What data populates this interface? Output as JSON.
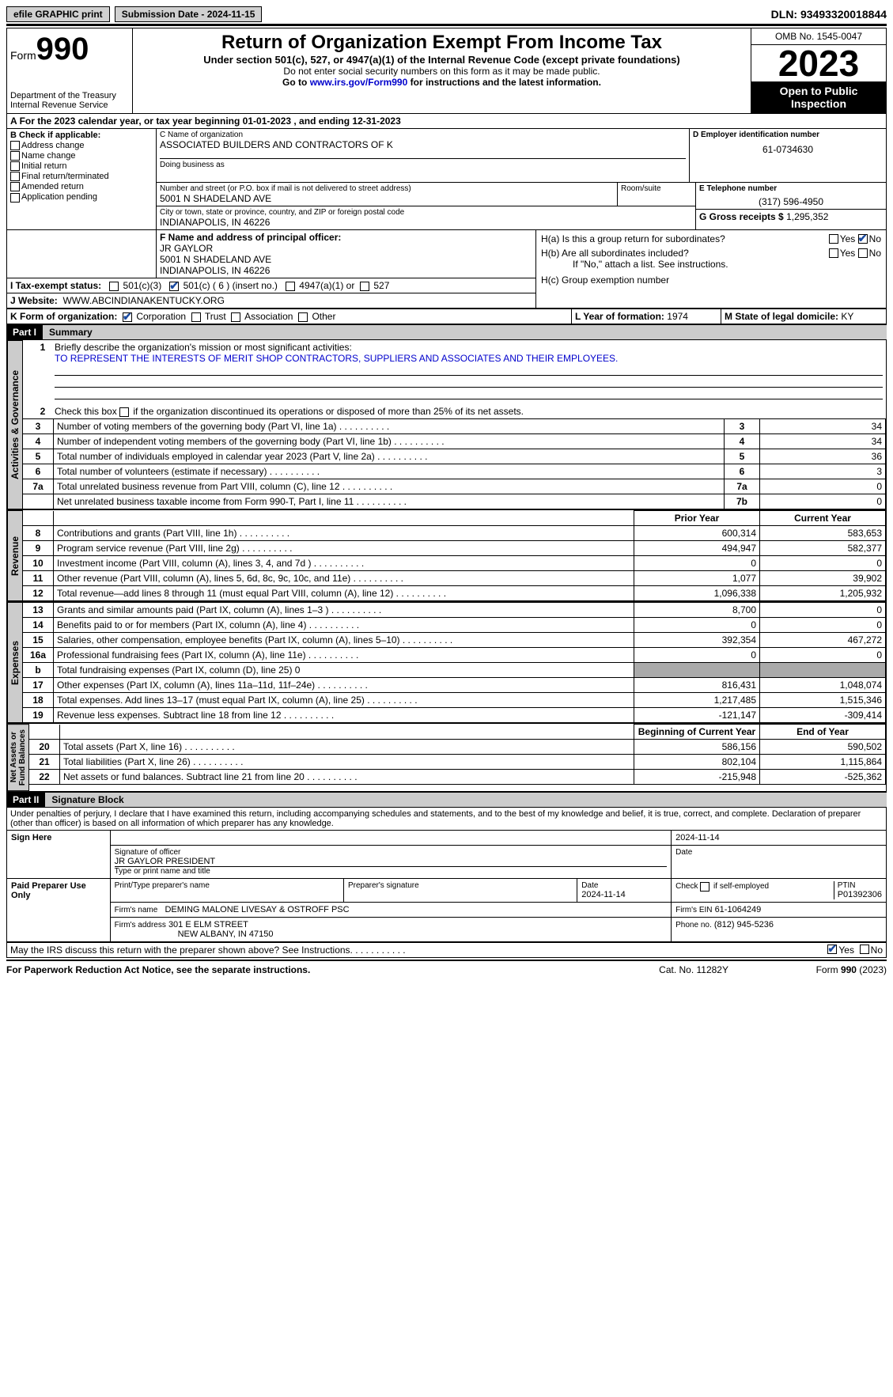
{
  "topbar": {
    "efile": "efile GRAPHIC print",
    "submission_label": "Submission Date - 2024-11-15",
    "dln_label": "DLN:",
    "dln": "93493320018844"
  },
  "header": {
    "form_prefix": "Form",
    "form_num": "990",
    "dept": "Department of the Treasury",
    "irs": "Internal Revenue Service",
    "title": "Return of Organization Exempt From Income Tax",
    "subtitle": "Under section 501(c), 527, or 4947(a)(1) of the Internal Revenue Code (except private foundations)",
    "note1": "Do not enter social security numbers on this form as it may be made public.",
    "note2_pre": "Go to ",
    "note2_link": "www.irs.gov/Form990",
    "note2_post": " for instructions and the latest information.",
    "omb": "OMB No. 1545-0047",
    "year": "2023",
    "open": "Open to Public Inspection"
  },
  "line_a": "For the 2023 calendar year, or tax year beginning 01-01-2023   , and ending 12-31-2023",
  "section_b": {
    "header": "B Check if applicable:",
    "items": [
      "Address change",
      "Name change",
      "Initial return",
      "Final return/terminated",
      "Amended return",
      "Application pending"
    ]
  },
  "section_c": {
    "label": "C Name of organization",
    "name": "ASSOCIATED BUILDERS AND CONTRACTORS OF K",
    "dba_label": "Doing business as",
    "addr_label": "Number and street (or P.O. box if mail is not delivered to street address)",
    "room_label": "Room/suite",
    "addr": "5001 N SHADELAND AVE",
    "city_label": "City or town, state or province, country, and ZIP or foreign postal code",
    "city": "INDIANAPOLIS, IN  46226"
  },
  "section_d": {
    "label": "D Employer identification number",
    "value": "61-0734630"
  },
  "section_e": {
    "label": "E Telephone number",
    "value": "(317) 596-4950"
  },
  "section_g": {
    "label": "G Gross receipts $",
    "value": "1,295,352"
  },
  "section_f": {
    "label": "F  Name and address of principal officer:",
    "name": "JR GAYLOR",
    "addr1": "5001 N SHADELAND AVE",
    "addr2": "INDIANAPOLIS, IN  46226"
  },
  "section_h": {
    "ha": "H(a)  Is this a group return for subordinates?",
    "hb": "H(b)  Are all subordinates included?",
    "hb_note": "If \"No,\" attach a list. See instructions.",
    "hc": "H(c)  Group exemption number",
    "yes": "Yes",
    "no": "No"
  },
  "tax_status": {
    "label": "I   Tax-exempt status:",
    "o1": "501(c)(3)",
    "o2": "501(c) ( 6 ) (insert no.)",
    "o3": "4947(a)(1) or",
    "o4": "527"
  },
  "website": {
    "label": "J   Website:",
    "value": "WWW.ABCINDIANAKENTUCKY.ORG"
  },
  "section_k": {
    "label": "K Form of organization:",
    "o1": "Corporation",
    "o2": "Trust",
    "o3": "Association",
    "o4": "Other"
  },
  "section_l": {
    "label": "L Year of formation:",
    "value": "1974"
  },
  "section_m": {
    "label": "M State of legal domicile:",
    "value": "KY"
  },
  "part1": {
    "num": "Part I",
    "title": "Summary"
  },
  "mission": {
    "label": "Briefly describe the organization's mission or most significant activities:",
    "text": "TO REPRESENT THE INTERESTS OF MERIT SHOP CONTRACTORS, SUPPLIERS AND ASSOCIATES AND THEIR EMPLOYEES."
  },
  "line2": "Check this box        if the organization discontinued its operations or disposed of more than 25% of its net assets.",
  "gov_rows": [
    {
      "n": "3",
      "t": "Number of voting members of the governing body (Part VI, line 1a)",
      "box": "3",
      "v": "34"
    },
    {
      "n": "4",
      "t": "Number of independent voting members of the governing body (Part VI, line 1b)",
      "box": "4",
      "v": "34"
    },
    {
      "n": "5",
      "t": "Total number of individuals employed in calendar year 2023 (Part V, line 2a)",
      "box": "5",
      "v": "36"
    },
    {
      "n": "6",
      "t": "Total number of volunteers (estimate if necessary)",
      "box": "6",
      "v": "3"
    },
    {
      "n": "7a",
      "t": "Total unrelated business revenue from Part VIII, column (C), line 12",
      "box": "7a",
      "v": "0"
    },
    {
      "n": "",
      "t": "Net unrelated business taxable income from Form 990-T, Part I, line 11",
      "box": "7b",
      "v": "0"
    }
  ],
  "rev_hdr": {
    "prior": "Prior Year",
    "current": "Current Year"
  },
  "rev_rows": [
    {
      "n": "8",
      "t": "Contributions and grants (Part VIII, line 1h)",
      "p": "600,314",
      "c": "583,653"
    },
    {
      "n": "9",
      "t": "Program service revenue (Part VIII, line 2g)",
      "p": "494,947",
      "c": "582,377"
    },
    {
      "n": "10",
      "t": "Investment income (Part VIII, column (A), lines 3, 4, and 7d )",
      "p": "0",
      "c": "0"
    },
    {
      "n": "11",
      "t": "Other revenue (Part VIII, column (A), lines 5, 6d, 8c, 9c, 10c, and 11e)",
      "p": "1,077",
      "c": "39,902"
    },
    {
      "n": "12",
      "t": "Total revenue—add lines 8 through 11 (must equal Part VIII, column (A), line 12)",
      "p": "1,096,338",
      "c": "1,205,932"
    }
  ],
  "exp_rows": [
    {
      "n": "13",
      "t": "Grants and similar amounts paid (Part IX, column (A), lines 1–3 )",
      "p": "8,700",
      "c": "0"
    },
    {
      "n": "14",
      "t": "Benefits paid to or for members (Part IX, column (A), line 4)",
      "p": "0",
      "c": "0"
    },
    {
      "n": "15",
      "t": "Salaries, other compensation, employee benefits (Part IX, column (A), lines 5–10)",
      "p": "392,354",
      "c": "467,272"
    },
    {
      "n": "16a",
      "t": "Professional fundraising fees (Part IX, column (A), line 11e)",
      "p": "0",
      "c": "0"
    },
    {
      "n": "b",
      "t": "Total fundraising expenses (Part IX, column (D), line 25)   0",
      "p": "",
      "c": "",
      "shade": true,
      "small": true
    },
    {
      "n": "17",
      "t": "Other expenses (Part IX, column (A), lines 11a–11d, 11f–24e)",
      "p": "816,431",
      "c": "1,048,074"
    },
    {
      "n": "18",
      "t": "Total expenses. Add lines 13–17 (must equal Part IX, column (A), line 25)",
      "p": "1,217,485",
      "c": "1,515,346"
    },
    {
      "n": "19",
      "t": "Revenue less expenses. Subtract line 18 from line 12",
      "p": "-121,147",
      "c": "-309,414"
    }
  ],
  "na_hdr": {
    "begin": "Beginning of Current Year",
    "end": "End of Year"
  },
  "na_rows": [
    {
      "n": "20",
      "t": "Total assets (Part X, line 16)",
      "p": "586,156",
      "c": "590,502"
    },
    {
      "n": "21",
      "t": "Total liabilities (Part X, line 26)",
      "p": "802,104",
      "c": "1,115,864"
    },
    {
      "n": "22",
      "t": "Net assets or fund balances. Subtract line 21 from line 20",
      "p": "-215,948",
      "c": "-525,362"
    }
  ],
  "part2": {
    "num": "Part II",
    "title": "Signature Block"
  },
  "penalties": "Under penalties of perjury, I declare that I have examined this return, including accompanying schedules and statements, and to the best of my knowledge and belief, it is true, correct, and complete. Declaration of preparer (other than officer) is based on all information of which preparer has any knowledge.",
  "sign": {
    "here": "Sign Here",
    "sig_officer": "Signature of officer",
    "officer": "JR GAYLOR PRESIDENT",
    "type_name": "Type or print name and title",
    "date_label": "Date",
    "date": "2024-11-14"
  },
  "paid": {
    "label": "Paid Preparer Use Only",
    "print_name": "Print/Type preparer's name",
    "prep_sig": "Preparer's signature",
    "date_label": "Date",
    "date": "2024-11-14",
    "check_label": "Check         if self-employed",
    "ptin_label": "PTIN",
    "ptin": "P01392306",
    "firm_name_label": "Firm's name",
    "firm_name": "DEMING MALONE LIVESAY & OSTROFF PSC",
    "firm_ein_label": "Firm's EIN",
    "firm_ein": "61-1064249",
    "firm_addr_label": "Firm's address",
    "firm_addr1": "301 E ELM STREET",
    "firm_addr2": "NEW ALBANY, IN  47150",
    "phone_label": "Phone no.",
    "phone": "(812) 945-5236"
  },
  "discuss": "May the IRS discuss this return with the preparer shown above? See Instructions.",
  "footer": {
    "left": "For Paperwork Reduction Act Notice, see the separate instructions.",
    "mid": "Cat. No. 11282Y",
    "right_pre": "Form ",
    "right_b": "990",
    "right_post": " (2023)"
  }
}
